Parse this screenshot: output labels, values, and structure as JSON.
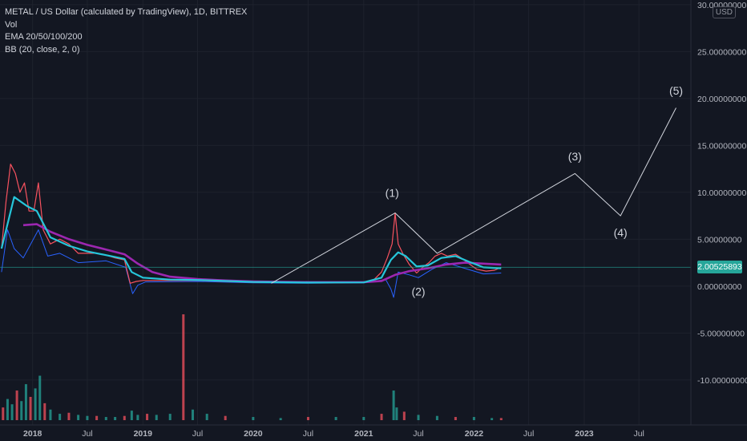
{
  "legend": {
    "symbol": "METAL / US Dollar (calculated by TradingView), 1D, BITTREX",
    "vol": "Vol",
    "ema": "EMA 20/50/100/200",
    "bb": "BB (20, close, 2, 0)"
  },
  "currency_badge": "USD",
  "last_price_label": "2.00525893",
  "colors": {
    "background": "#131722",
    "grid": "#1e222d",
    "ema_fast": "#f23645",
    "ema_mid": "#ff9800",
    "ema_slow": "#26c6da",
    "ema_200": "#9c27b0",
    "bb": "#2962ff",
    "price": "#f7525f",
    "volume": "#26a69a",
    "annotation": "#d1d4dc",
    "last_price": "#26a69a"
  },
  "chart_data": {
    "type": "line",
    "x_tick_labels": [
      "2018",
      "Jul",
      "2019",
      "Jul",
      "2020",
      "Jul",
      "2021",
      "Jul",
      "2022",
      "Jul",
      "2023",
      "Jul"
    ],
    "x_ticks": [
      "2018-01-01",
      "2018-07-01",
      "2019-01-01",
      "2019-07-01",
      "2020-01-01",
      "2020-07-01",
      "2021-01-01",
      "2021-07-01",
      "2022-01-01",
      "2022-07-01",
      "2023-01-01",
      "2023-07-01"
    ],
    "y_ticks": [
      30,
      25,
      20,
      15,
      10,
      5,
      0,
      -5,
      -10
    ],
    "y_tick_labels": [
      "30.00000000",
      "25.00000000",
      "20.00000000",
      "15.00000000",
      "10.00000000",
      "5.00000000",
      "0.00000000",
      "-5.00000000",
      "-10.00000000"
    ],
    "ylim": [
      -14.8,
      30.5
    ],
    "xlim": [
      "2017-09-15",
      "2023-12-20"
    ],
    "last_price": 2.00525893,
    "series": [
      {
        "key": "price",
        "points": [
          [
            "2017-09-20",
            4
          ],
          [
            "2017-10-05",
            9
          ],
          [
            "2017-10-20",
            13
          ],
          [
            "2017-11-05",
            12
          ],
          [
            "2017-11-20",
            10
          ],
          [
            "2017-12-05",
            11
          ],
          [
            "2017-12-20",
            8
          ],
          [
            "2018-01-05",
            8
          ],
          [
            "2018-01-20",
            11
          ],
          [
            "2018-02-05",
            6
          ],
          [
            "2018-03-01",
            4.5
          ],
          [
            "2018-04-01",
            5
          ],
          [
            "2018-05-01",
            4.5
          ],
          [
            "2018-06-01",
            3.5
          ],
          [
            "2018-07-01",
            3.5
          ],
          [
            "2018-08-01",
            3.5
          ],
          [
            "2018-09-01",
            3.3
          ],
          [
            "2018-10-01",
            3.0
          ],
          [
            "2018-11-01",
            2.8
          ],
          [
            "2018-11-20",
            0.3
          ],
          [
            "2018-12-10",
            0.5
          ],
          [
            "2019-01-01",
            0.6
          ],
          [
            "2019-04-01",
            0.6
          ],
          [
            "2019-07-01",
            0.6
          ],
          [
            "2019-10-01",
            0.5
          ],
          [
            "2020-01-01",
            0.4
          ],
          [
            "2020-04-01",
            0.4
          ],
          [
            "2020-07-01",
            0.35
          ],
          [
            "2020-10-01",
            0.35
          ],
          [
            "2021-01-01",
            0.4
          ],
          [
            "2021-02-01",
            0.6
          ],
          [
            "2021-03-01",
            1.5
          ],
          [
            "2021-03-20",
            3.0
          ],
          [
            "2021-04-05",
            4.5
          ],
          [
            "2021-04-15",
            7.8
          ],
          [
            "2021-04-25",
            4.5
          ],
          [
            "2021-05-10",
            3.5
          ],
          [
            "2021-06-01",
            2.3
          ],
          [
            "2021-06-25",
            1.4
          ],
          [
            "2021-07-15",
            2.0
          ],
          [
            "2021-08-05",
            2.5
          ],
          [
            "2021-08-25",
            3.2
          ],
          [
            "2021-09-15",
            3.5
          ],
          [
            "2021-10-05",
            3.2
          ],
          [
            "2021-11-01",
            3.4
          ],
          [
            "2021-11-20",
            3.0
          ],
          [
            "2021-12-15",
            2.4
          ],
          [
            "2022-01-10",
            1.8
          ],
          [
            "2022-02-10",
            1.6
          ],
          [
            "2022-03-10",
            1.7
          ],
          [
            "2022-04-01",
            2.0
          ]
        ]
      },
      {
        "key": "ema_slow",
        "points": [
          [
            "2017-09-20",
            4
          ],
          [
            "2017-11-01",
            9.5
          ],
          [
            "2017-12-15",
            8.5
          ],
          [
            "2018-01-15",
            8
          ],
          [
            "2018-03-01",
            5.2
          ],
          [
            "2018-05-01",
            4.3
          ],
          [
            "2018-07-01",
            3.7
          ],
          [
            "2018-09-01",
            3.3
          ],
          [
            "2018-11-01",
            2.9
          ],
          [
            "2018-11-25",
            1.5
          ],
          [
            "2019-01-01",
            0.9
          ],
          [
            "2019-04-01",
            0.7
          ],
          [
            "2019-07-01",
            0.65
          ],
          [
            "2020-01-01",
            0.45
          ],
          [
            "2020-07-01",
            0.38
          ],
          [
            "2021-01-01",
            0.4
          ],
          [
            "2021-03-01",
            0.9
          ],
          [
            "2021-04-01",
            2.8
          ],
          [
            "2021-04-25",
            3.6
          ],
          [
            "2021-05-20",
            3.2
          ],
          [
            "2021-06-25",
            2.1
          ],
          [
            "2021-08-01",
            2.2
          ],
          [
            "2021-09-15",
            3.0
          ],
          [
            "2021-11-01",
            3.2
          ],
          [
            "2021-12-15",
            2.6
          ],
          [
            "2022-02-01",
            2.0
          ],
          [
            "2022-04-01",
            1.9
          ]
        ]
      },
      {
        "key": "ema_200",
        "points": [
          [
            "2017-12-01",
            6.5
          ],
          [
            "2018-01-15",
            6.6
          ],
          [
            "2018-03-01",
            5.8
          ],
          [
            "2018-05-01",
            5.0
          ],
          [
            "2018-07-01",
            4.4
          ],
          [
            "2018-09-01",
            3.9
          ],
          [
            "2018-11-01",
            3.4
          ],
          [
            "2018-12-15",
            2.4
          ],
          [
            "2019-02-01",
            1.5
          ],
          [
            "2019-04-01",
            1.0
          ],
          [
            "2019-07-01",
            0.75
          ],
          [
            "2019-10-01",
            0.6
          ],
          [
            "2020-01-01",
            0.5
          ],
          [
            "2020-07-01",
            0.42
          ],
          [
            "2021-01-01",
            0.42
          ],
          [
            "2021-03-01",
            0.55
          ],
          [
            "2021-04-15",
            1.2
          ],
          [
            "2021-06-01",
            1.6
          ],
          [
            "2021-08-01",
            1.9
          ],
          [
            "2021-10-01",
            2.3
          ],
          [
            "2021-12-01",
            2.5
          ],
          [
            "2022-02-01",
            2.4
          ],
          [
            "2022-04-01",
            2.3
          ]
        ]
      },
      {
        "key": "bb",
        "points": [
          [
            "2017-09-20",
            1.5
          ],
          [
            "2017-10-10",
            6
          ],
          [
            "2017-11-01",
            4
          ],
          [
            "2017-12-01",
            3
          ],
          [
            "2018-01-20",
            6
          ],
          [
            "2018-02-20",
            3.2
          ],
          [
            "2018-04-01",
            3.5
          ],
          [
            "2018-06-01",
            2.5
          ],
          [
            "2018-09-01",
            2.7
          ],
          [
            "2018-11-05",
            2.0
          ],
          [
            "2018-11-28",
            -0.8
          ],
          [
            "2018-12-15",
            0.1
          ],
          [
            "2019-01-10",
            0.45
          ],
          [
            "2019-07-01",
            0.5
          ],
          [
            "2020-01-01",
            0.35
          ],
          [
            "2020-07-01",
            0.3
          ],
          [
            "2021-01-01",
            0.35
          ],
          [
            "2021-03-15",
            0.7
          ],
          [
            "2021-04-01",
            -0.3
          ],
          [
            "2021-04-10",
            -1.2
          ],
          [
            "2021-04-25",
            1.5
          ],
          [
            "2021-06-01",
            1.2
          ],
          [
            "2021-07-01",
            0.9
          ],
          [
            "2021-08-15",
            1.8
          ],
          [
            "2021-10-01",
            2.5
          ],
          [
            "2021-12-01",
            1.9
          ],
          [
            "2022-02-01",
            1.3
          ],
          [
            "2022-04-01",
            1.4
          ]
        ]
      },
      {
        "key": "wave",
        "points": [
          [
            "2020-03-01",
            0.3
          ],
          [
            "2021-04-15",
            7.8
          ],
          [
            "2021-09-01",
            3.5
          ],
          [
            "2022-12-01",
            12.0
          ],
          [
            "2023-05-01",
            7.5
          ],
          [
            "2023-11-01",
            19.0
          ]
        ]
      }
    ],
    "annotations": [
      {
        "text": "(1)",
        "x": "2021-04-05",
        "y": 9.5
      },
      {
        "text": "(2)",
        "x": "2021-07-01",
        "y": -1.0
      },
      {
        "text": "(3)",
        "x": "2022-12-01",
        "y": 13.4
      },
      {
        "text": "(4)",
        "x": "2023-05-01",
        "y": 5.3
      },
      {
        "text": "(5)",
        "x": "2023-11-01",
        "y": 20.4
      }
    ],
    "volume": {
      "ylim": [
        0,
        1.0
      ],
      "bars": [
        [
          "2017-09-25",
          0.12
        ],
        [
          "2017-10-10",
          0.2
        ],
        [
          "2017-10-25",
          0.15
        ],
        [
          "2017-11-10",
          0.28
        ],
        [
          "2017-11-25",
          0.18
        ],
        [
          "2017-12-10",
          0.34
        ],
        [
          "2017-12-25",
          0.22
        ],
        [
          "2018-01-10",
          0.3
        ],
        [
          "2018-01-25",
          0.42
        ],
        [
          "2018-02-10",
          0.16
        ],
        [
          "2018-03-01",
          0.1
        ],
        [
          "2018-04-01",
          0.06
        ],
        [
          "2018-05-01",
          0.07
        ],
        [
          "2018-06-01",
          0.05
        ],
        [
          "2018-07-01",
          0.04
        ],
        [
          "2018-08-01",
          0.04
        ],
        [
          "2018-09-01",
          0.03
        ],
        [
          "2018-10-01",
          0.03
        ],
        [
          "2018-11-01",
          0.04
        ],
        [
          "2018-11-25",
          0.09
        ],
        [
          "2018-12-15",
          0.05
        ],
        [
          "2019-01-15",
          0.06
        ],
        [
          "2019-02-15",
          0.05
        ],
        [
          "2019-04-01",
          0.06
        ],
        [
          "2019-05-15",
          1.0
        ],
        [
          "2019-06-15",
          0.1
        ],
        [
          "2019-08-01",
          0.06
        ],
        [
          "2019-10-01",
          0.04
        ],
        [
          "2020-01-01",
          0.03
        ],
        [
          "2020-04-01",
          0.02
        ],
        [
          "2020-07-01",
          0.03
        ],
        [
          "2020-10-01",
          0.03
        ],
        [
          "2021-01-01",
          0.03
        ],
        [
          "2021-03-01",
          0.06
        ],
        [
          "2021-04-10",
          0.28
        ],
        [
          "2021-04-20",
          0.12
        ],
        [
          "2021-05-15",
          0.08
        ],
        [
          "2021-07-01",
          0.05
        ],
        [
          "2021-09-01",
          0.04
        ],
        [
          "2021-11-01",
          0.03
        ],
        [
          "2022-01-01",
          0.03
        ],
        [
          "2022-03-01",
          0.02
        ],
        [
          "2022-04-01",
          0.02
        ]
      ]
    }
  }
}
